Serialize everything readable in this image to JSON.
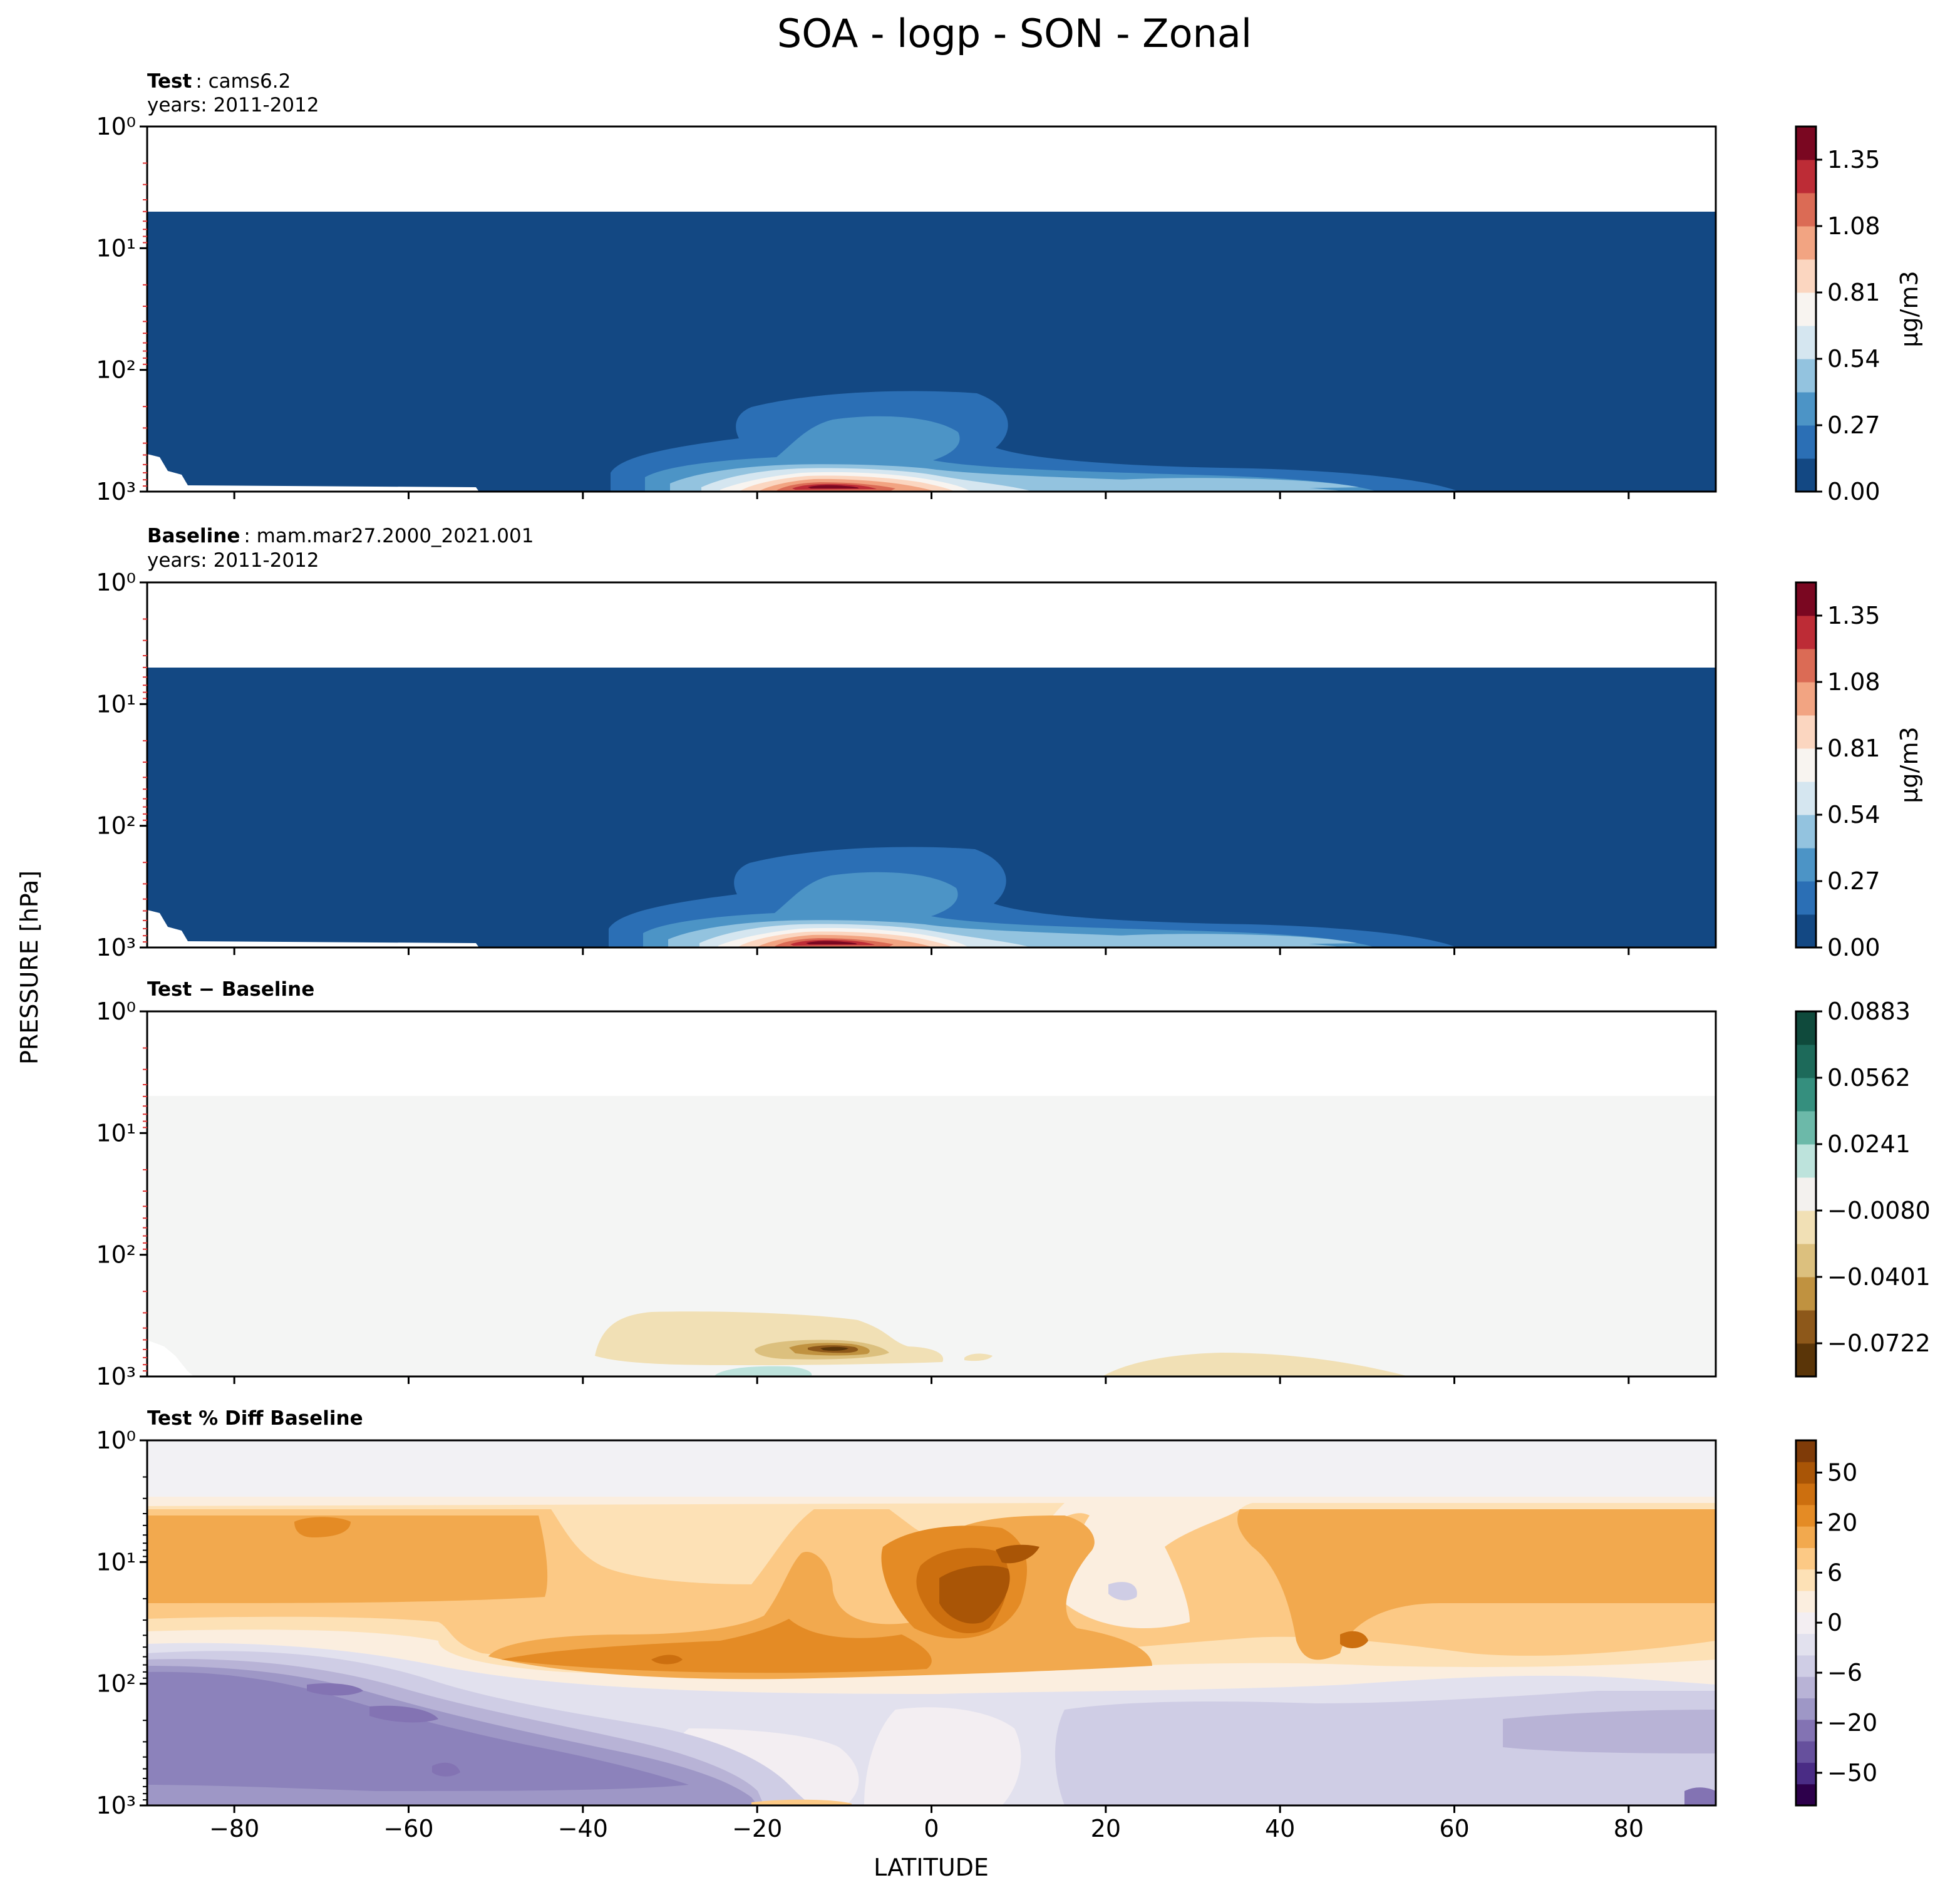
{
  "figure_title": "SOA - logp - SON - Zonal",
  "xlabel": "LATITUDE",
  "ylabel": "PRESSURE [hPa]",
  "chart_data": [
    {
      "type": "heatmap",
      "name": "test-panel",
      "title_bold": "Test",
      "title_text": ": cams6.2",
      "subtitle": "years: 2011-2012",
      "x_range": [
        -90,
        90
      ],
      "y_range_hPa": [
        1,
        1000
      ],
      "y_scale": "log",
      "x_ticks": [
        "−80",
        "−60",
        "−40",
        "−20",
        "0",
        "20",
        "40",
        "60",
        "80"
      ],
      "x_tick_values": [
        -80,
        -60,
        -40,
        -20,
        0,
        20,
        40,
        60,
        80
      ],
      "y_ticks": [
        "10⁰",
        "10¹",
        "10²",
        "10³"
      ],
      "colorbar": {
        "label": "μg/m3",
        "colormap": "RdBu_r",
        "ticks": [
          "0.00",
          "0.27",
          "0.54",
          "0.81",
          "1.08",
          "1.35"
        ],
        "levels": 11,
        "colors": [
          "#134883",
          "#2b6fb5",
          "#4c94c6",
          "#93c3df",
          "#d5e6f0",
          "#f8f4f0",
          "#fbd6c0",
          "#f2a482",
          "#db6b55",
          "#bd2c36",
          "#7a0721"
        ]
      },
      "background_color": "#134883",
      "max_feature": {
        "lat": -10,
        "pressure_hPa": 850,
        "value_approx": 1.45
      }
    },
    {
      "type": "heatmap",
      "name": "baseline-panel",
      "title_bold": "Baseline",
      "title_text": ": mam.mar27.2000_2021.001",
      "subtitle": "years: 2011-2012",
      "x_range": [
        -90,
        90
      ],
      "y_range_hPa": [
        1,
        1000
      ],
      "y_scale": "log",
      "x_ticks": [
        "−80",
        "−60",
        "−40",
        "−20",
        "0",
        "20",
        "40",
        "60",
        "80"
      ],
      "x_tick_values": [
        -80,
        -60,
        -40,
        -20,
        0,
        20,
        40,
        60,
        80
      ],
      "y_ticks": [
        "10⁰",
        "10¹",
        "10²",
        "10³"
      ],
      "colorbar": {
        "label": "μg/m3",
        "colormap": "RdBu_r",
        "ticks": [
          "0.00",
          "0.27",
          "0.54",
          "0.81",
          "1.08",
          "1.35"
        ],
        "levels": 11,
        "colors": [
          "#134883",
          "#2b6fb5",
          "#4c94c6",
          "#93c3df",
          "#d5e6f0",
          "#f8f4f0",
          "#fbd6c0",
          "#f2a482",
          "#db6b55",
          "#bd2c36",
          "#7a0721"
        ]
      },
      "background_color": "#134883",
      "max_feature": {
        "lat": -10,
        "pressure_hPa": 850,
        "value_approx": 1.45
      }
    },
    {
      "type": "heatmap",
      "name": "difference-panel",
      "title_bold": "Test − Baseline",
      "x_range": [
        -90,
        90
      ],
      "y_range_hPa": [
        1,
        1000
      ],
      "y_scale": "log",
      "x_ticks": [
        "−80",
        "−60",
        "−40",
        "−20",
        "0",
        "20",
        "40",
        "60",
        "80"
      ],
      "x_tick_values": [
        -80,
        -60,
        -40,
        -20,
        0,
        20,
        40,
        60,
        80
      ],
      "y_ticks": [
        "10⁰",
        "10¹",
        "10²",
        "10³"
      ],
      "colorbar": {
        "colormap": "BrBG",
        "ticks": [
          "0.0883",
          "0.0562",
          "0.0241",
          "−0.0080",
          "−0.0401",
          "−0.0722"
        ],
        "levels": 11,
        "colors": [
          "#0f4a3c",
          "#1d6a5a",
          "#358f7e",
          "#6cb9a9",
          "#bde3dc",
          "#f3f1ee",
          "#f1e0b5",
          "#dcc07e",
          "#c09240",
          "#8d581a",
          "#5a3508"
        ]
      },
      "background_color": "#f4f5f4",
      "min_feature": {
        "lat": -10,
        "pressure_hPa": 800,
        "value_approx": -0.08
      }
    },
    {
      "type": "heatmap",
      "name": "percent-diff-panel",
      "title_bold": "Test % Diff Baseline",
      "x_range": [
        -90,
        90
      ],
      "y_range_hPa": [
        1,
        1000
      ],
      "y_scale": "log",
      "x_ticks": [
        "−80",
        "−60",
        "−40",
        "−20",
        "0",
        "20",
        "40",
        "60",
        "80"
      ],
      "x_tick_values": [
        -80,
        -60,
        -40,
        -20,
        0,
        20,
        40,
        60,
        80
      ],
      "y_ticks": [
        "10⁰",
        "10¹",
        "10²",
        "10³"
      ],
      "colorbar": {
        "colormap": "PuOr_r",
        "ticks": [
          "50",
          "20",
          "6",
          "0",
          "−6",
          "−20",
          "−50"
        ],
        "levels": 17,
        "colors": [
          "#7f3b08",
          "#a95506",
          "#cc6f0f",
          "#e48b25",
          "#f2a94e",
          "#fcc985",
          "#fde1b6",
          "#fbeedf",
          "#f3eef2",
          "#e2e1ee",
          "#cfcde5",
          "#b8b3d6",
          "#9e97c6",
          "#8373b3",
          "#66509d",
          "#4a2c85",
          "#2d004b"
        ]
      },
      "background_color": "#f2f1f4"
    }
  ]
}
